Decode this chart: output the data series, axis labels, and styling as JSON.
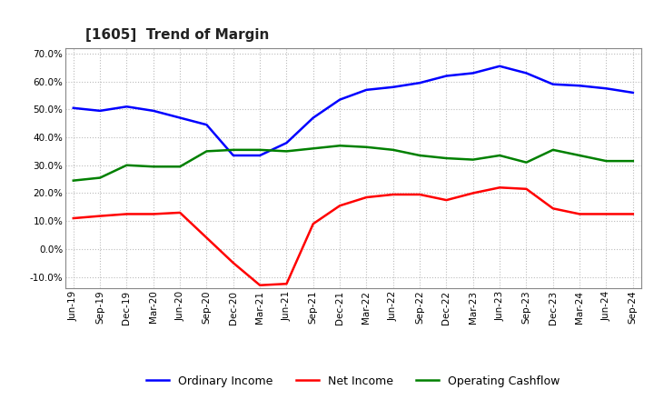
{
  "title": "[1605]  Trend of Margin",
  "x_labels": [
    "Jun-19",
    "Sep-19",
    "Dec-19",
    "Mar-20",
    "Jun-20",
    "Sep-20",
    "Dec-20",
    "Mar-21",
    "Jun-21",
    "Sep-21",
    "Dec-21",
    "Mar-22",
    "Jun-22",
    "Sep-22",
    "Dec-22",
    "Mar-23",
    "Jun-23",
    "Sep-23",
    "Dec-23",
    "Mar-24",
    "Jun-24",
    "Sep-24"
  ],
  "ordinary_income": [
    0.505,
    0.495,
    0.51,
    0.495,
    0.47,
    0.445,
    0.335,
    0.335,
    0.38,
    0.47,
    0.535,
    0.57,
    0.58,
    0.595,
    0.62,
    0.63,
    0.655,
    0.63,
    0.59,
    0.585,
    0.575,
    0.56
  ],
  "net_income": [
    0.11,
    0.118,
    0.125,
    0.125,
    0.13,
    0.04,
    -0.05,
    -0.13,
    -0.125,
    0.09,
    0.155,
    0.185,
    0.195,
    0.195,
    0.175,
    0.2,
    0.22,
    0.215,
    0.145,
    0.125,
    0.125,
    0.125
  ],
  "operating_cashflow": [
    0.245,
    0.255,
    0.3,
    0.295,
    0.295,
    0.35,
    0.355,
    0.355,
    0.35,
    0.36,
    0.37,
    0.365,
    0.355,
    0.335,
    0.325,
    0.32,
    0.335,
    0.31,
    0.355,
    0.335,
    0.315,
    0.315
  ],
  "colors": {
    "ordinary_income": "#0000FF",
    "net_income": "#FF0000",
    "operating_cashflow": "#008000"
  },
  "ylim": [
    -0.14,
    0.72
  ],
  "yticks": [
    -0.1,
    0.0,
    0.1,
    0.2,
    0.3,
    0.4,
    0.5,
    0.6,
    0.7
  ],
  "background_color": "#FFFFFF",
  "grid_color": "#BBBBBB",
  "title_fontsize": 11,
  "legend_fontsize": 9,
  "tick_fontsize": 7.5
}
